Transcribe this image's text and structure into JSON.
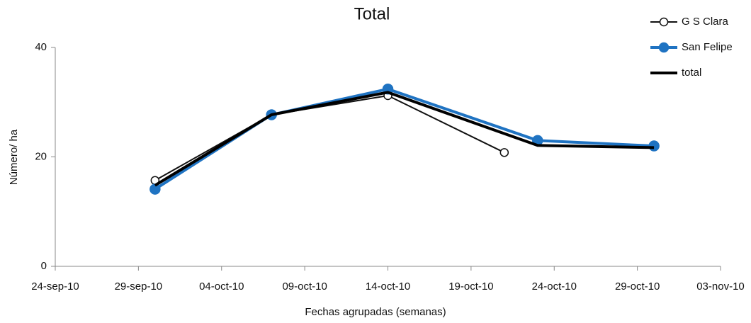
{
  "chart_data": {
    "type": "line",
    "title": "Total",
    "x_label": "Fechas agrupadas (semanas)",
    "y_label": "Número/ ha",
    "xlim": [
      "2010-09-24",
      "2010-11-03"
    ],
    "xticks": [
      {
        "value": "2010-09-24",
        "label": "24-sep-10"
      },
      {
        "value": "2010-09-29",
        "label": "29-sep-10"
      },
      {
        "value": "2010-10-04",
        "label": "04-oct-10"
      },
      {
        "value": "2010-10-09",
        "label": "09-oct-10"
      },
      {
        "value": "2010-10-14",
        "label": "14-oct-10"
      },
      {
        "value": "2010-10-19",
        "label": "19-oct-10"
      },
      {
        "value": "2010-10-24",
        "label": "24-oct-10"
      },
      {
        "value": "2010-10-29",
        "label": "29-oct-10"
      },
      {
        "value": "2010-11-03",
        "label": "03-nov-10"
      }
    ],
    "ylim": [
      0,
      40
    ],
    "yticks": [
      0,
      20,
      40
    ],
    "grid": false,
    "legend": "top-right",
    "series": [
      {
        "name": "G S Clara",
        "color": "#111111",
        "width": 2,
        "marker": "open",
        "x": [
          "2010-09-30",
          "2010-10-07",
          "2010-10-14",
          "2010-10-21"
        ],
        "values": [
          15.7,
          27.7,
          31.2,
          20.8
        ]
      },
      {
        "name": "San Felipe",
        "color": "#1f73c2",
        "width": 4,
        "marker": "filled",
        "x": [
          "2010-09-30",
          "2010-10-07",
          "2010-10-14",
          "2010-10-23",
          "2010-10-30"
        ],
        "values": [
          14.1,
          27.7,
          32.4,
          23.0,
          22.0
        ]
      },
      {
        "name": "total",
        "color": "#000000",
        "width": 4,
        "marker": "none",
        "x": [
          "2010-09-30",
          "2010-10-07",
          "2010-10-14",
          "2010-10-23",
          "2010-10-30"
        ],
        "values": [
          14.8,
          27.7,
          31.8,
          22.1,
          21.7
        ]
      }
    ]
  }
}
